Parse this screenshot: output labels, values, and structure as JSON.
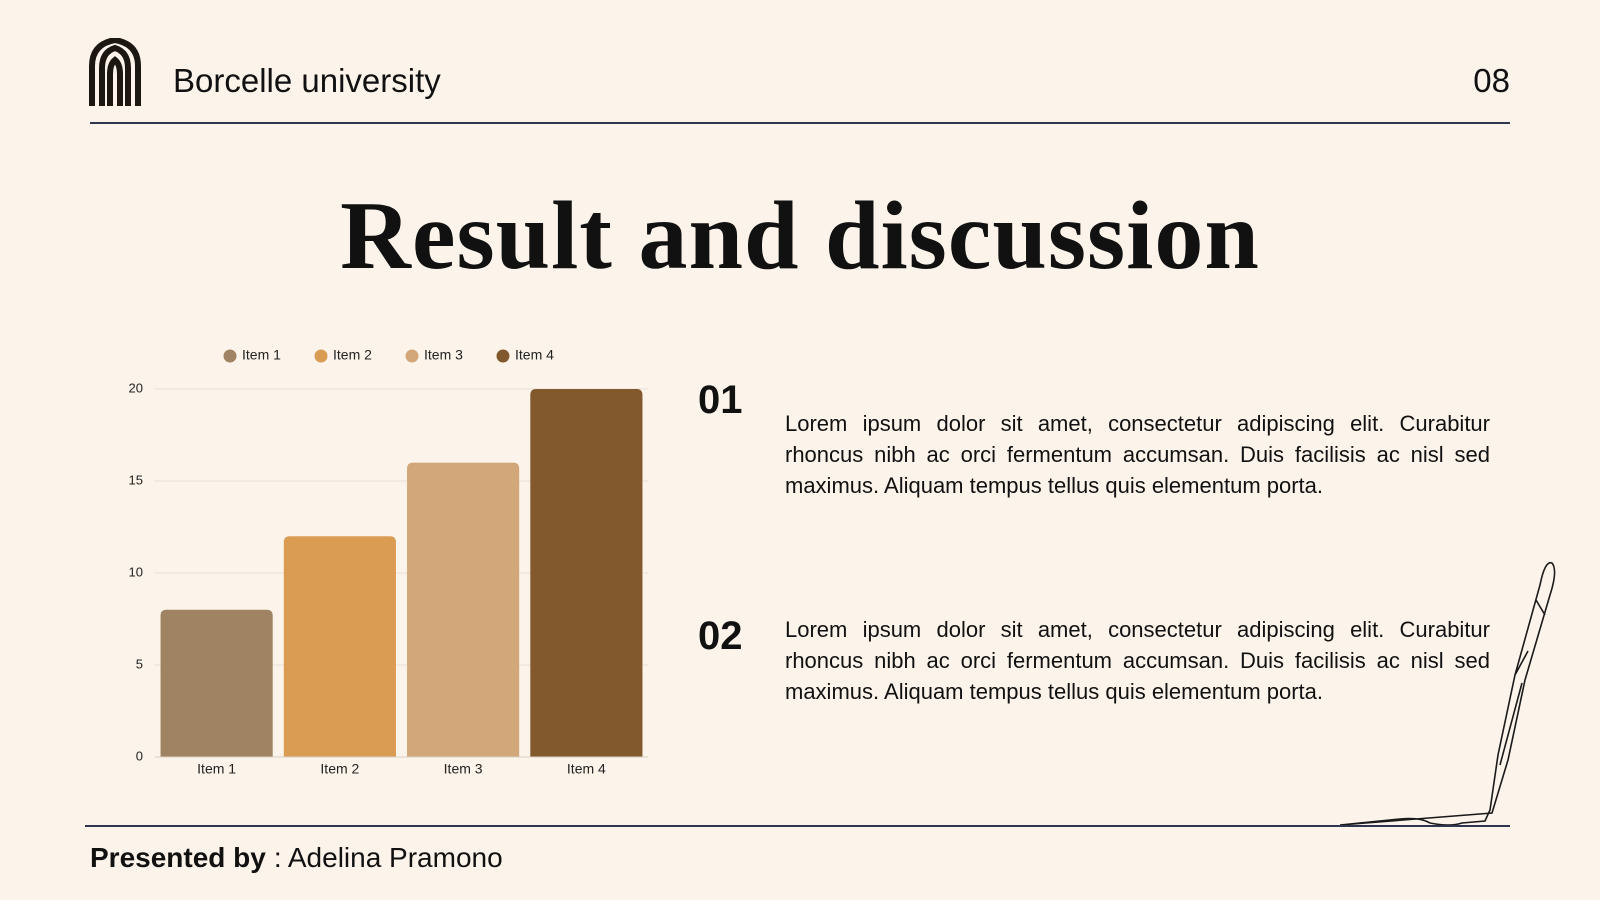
{
  "header": {
    "brand": "Borcelle university",
    "page": "08"
  },
  "title": "Result and discussion",
  "chart_data": {
    "type": "bar",
    "categories": [
      "Item 1",
      "Item 2",
      "Item 3",
      "Item 4"
    ],
    "values": [
      8,
      12,
      16,
      20
    ],
    "colors": [
      "#a08363",
      "#da9b53",
      "#d2a87a",
      "#82582d"
    ],
    "ylim": [
      0,
      20
    ],
    "yticks": [
      0,
      5,
      10,
      15,
      20
    ],
    "grid": true,
    "legend": "top"
  },
  "points": [
    {
      "number": "01",
      "text": "Lorem ipsum dolor sit amet, consectetur adipiscing elit. Curabitur rhoncus nibh ac orci fermentum accumsan. Duis facilisis ac nisl sed maximus. Aliquam tempus tellus quis elementum porta."
    },
    {
      "number": "02",
      "text": "Lorem ipsum dolor sit amet, consectetur adipiscing elit. Curabitur rhoncus nibh ac orci fermentum accumsan. Duis facilisis ac nisl sed maximus. Aliquam tempus tellus quis elementum porta."
    }
  ],
  "footer": {
    "label": "Presented by",
    "name": ": Adelina Pramono"
  }
}
